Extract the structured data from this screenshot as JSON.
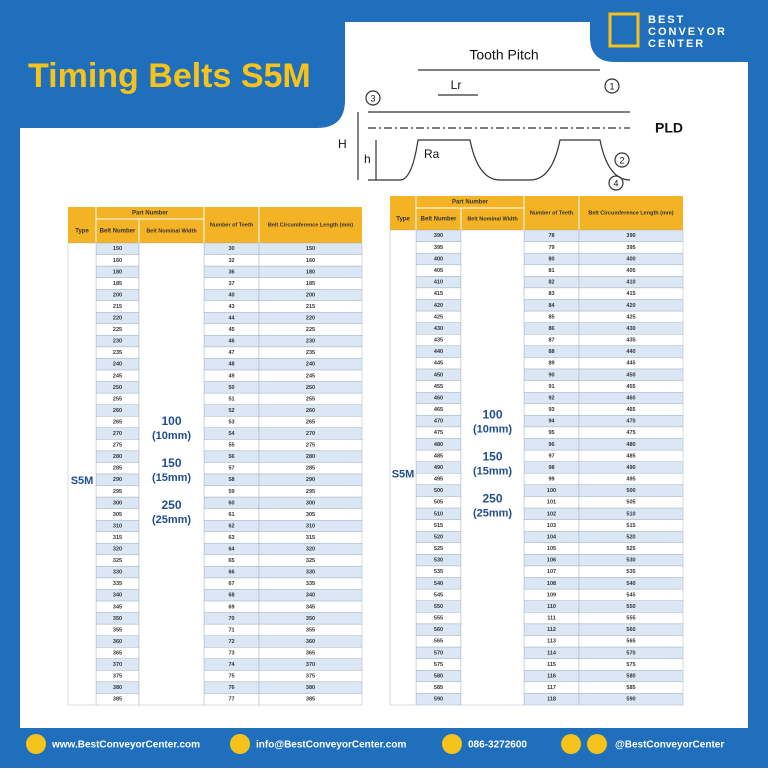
{
  "header": {
    "title": "Timing Belts S5M",
    "logo": {
      "line1": "BEST",
      "line2": "CONVEYOR",
      "line3": "CENTER"
    }
  },
  "diagram": {
    "tooth_pitch": "Tooth Pitch",
    "lr": "Lr",
    "pld": "PLD",
    "h_upper": "H",
    "h_lower": "h",
    "ra": "Ra",
    "callouts": [
      "1",
      "2",
      "3",
      "4"
    ]
  },
  "tables": [
    {
      "part_number": "Part Number",
      "type_header": "Type",
      "belt_number_header": "Belt Number",
      "width_header": "Belt Nominal Width",
      "teeth_header": "Number of Teeth",
      "length_header": "Belt Circumference Length (mm)",
      "type": "S5M",
      "widths": [
        {
          "size": "100",
          "mm": "(10mm)"
        },
        {
          "size": "150",
          "mm": "(15mm)"
        },
        {
          "size": "250",
          "mm": "(25mm)"
        }
      ],
      "rows": [
        [
          150,
          30,
          150
        ],
        [
          160,
          32,
          160
        ],
        [
          180,
          36,
          180
        ],
        [
          185,
          37,
          185
        ],
        [
          200,
          40,
          200
        ],
        [
          215,
          43,
          215
        ],
        [
          220,
          44,
          220
        ],
        [
          225,
          45,
          225
        ],
        [
          230,
          46,
          230
        ],
        [
          235,
          47,
          235
        ],
        [
          240,
          48,
          240
        ],
        [
          245,
          49,
          245
        ],
        [
          250,
          50,
          250
        ],
        [
          255,
          51,
          255
        ],
        [
          260,
          52,
          260
        ],
        [
          265,
          53,
          265
        ],
        [
          270,
          54,
          270
        ],
        [
          275,
          55,
          275
        ],
        [
          280,
          56,
          280
        ],
        [
          285,
          57,
          285
        ],
        [
          290,
          58,
          290
        ],
        [
          295,
          59,
          295
        ],
        [
          300,
          60,
          300
        ],
        [
          305,
          61,
          305
        ],
        [
          310,
          62,
          310
        ],
        [
          315,
          63,
          315
        ],
        [
          320,
          64,
          320
        ],
        [
          325,
          65,
          325
        ],
        [
          330,
          66,
          330
        ],
        [
          335,
          67,
          335
        ],
        [
          340,
          68,
          340
        ],
        [
          345,
          69,
          345
        ],
        [
          350,
          70,
          350
        ],
        [
          355,
          71,
          355
        ],
        [
          360,
          72,
          360
        ],
        [
          365,
          73,
          365
        ],
        [
          370,
          74,
          370
        ],
        [
          375,
          75,
          375
        ],
        [
          380,
          76,
          380
        ],
        [
          385,
          77,
          385
        ]
      ]
    },
    {
      "part_number": "Part Number",
      "type_header": "Type",
      "belt_number_header": "Belt Number",
      "width_header": "Belt Nominal Width",
      "teeth_header": "Number of Teeth",
      "length_header": "Belt Circumference Length (mm)",
      "type": "S5M",
      "widths": [
        {
          "size": "100",
          "mm": "(10mm)"
        },
        {
          "size": "150",
          "mm": "(15mm)"
        },
        {
          "size": "250",
          "mm": "(25mm)"
        }
      ],
      "rows": [
        [
          390,
          78,
          390
        ],
        [
          395,
          79,
          395
        ],
        [
          400,
          80,
          400
        ],
        [
          405,
          81,
          405
        ],
        [
          410,
          82,
          410
        ],
        [
          415,
          83,
          415
        ],
        [
          420,
          84,
          420
        ],
        [
          425,
          85,
          425
        ],
        [
          430,
          86,
          430
        ],
        [
          435,
          87,
          435
        ],
        [
          440,
          88,
          440
        ],
        [
          445,
          89,
          445
        ],
        [
          450,
          90,
          450
        ],
        [
          455,
          91,
          455
        ],
        [
          460,
          92,
          460
        ],
        [
          465,
          93,
          465
        ],
        [
          470,
          94,
          470
        ],
        [
          475,
          95,
          475
        ],
        [
          480,
          96,
          480
        ],
        [
          485,
          97,
          485
        ],
        [
          490,
          98,
          490
        ],
        [
          495,
          99,
          495
        ],
        [
          500,
          100,
          500
        ],
        [
          505,
          101,
          505
        ],
        [
          510,
          102,
          510
        ],
        [
          515,
          103,
          515
        ],
        [
          520,
          104,
          520
        ],
        [
          525,
          105,
          525
        ],
        [
          530,
          106,
          530
        ],
        [
          535,
          107,
          535
        ],
        [
          540,
          108,
          540
        ],
        [
          545,
          109,
          545
        ],
        [
          550,
          110,
          550
        ],
        [
          555,
          111,
          555
        ],
        [
          560,
          112,
          560
        ],
        [
          565,
          113,
          565
        ],
        [
          570,
          114,
          570
        ],
        [
          575,
          115,
          575
        ],
        [
          580,
          116,
          580
        ],
        [
          585,
          117,
          585
        ],
        [
          590,
          118,
          590
        ]
      ]
    }
  ],
  "footer": {
    "website": "www.BestConveyorCenter.com",
    "email": "info@BestConveyorCenter.com",
    "phone": "086-3272600",
    "social": "@BestConveyorCenter"
  }
}
